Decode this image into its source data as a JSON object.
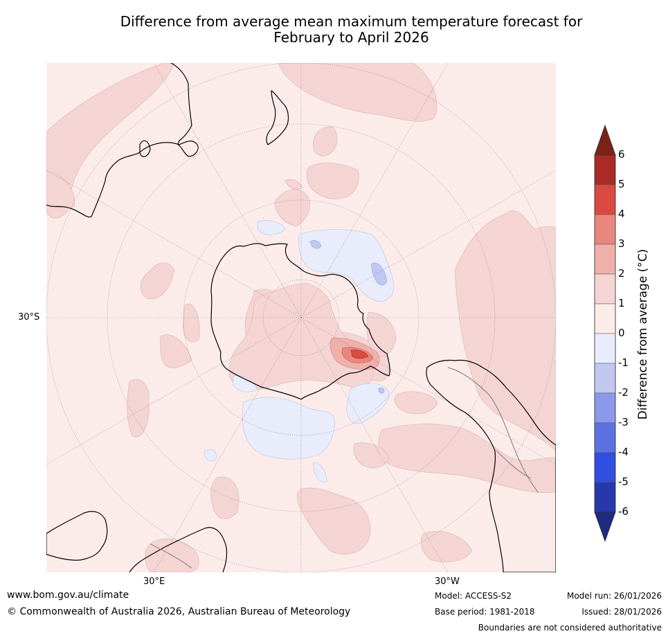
{
  "title_line1": "Difference from average mean maximum temperature forecast for",
  "title_line2": "February to April 2026",
  "map": {
    "projection": "south polar stereographic",
    "lat_label": "30°S",
    "lon_labels": [
      "30°E",
      "30°W"
    ],
    "regions": {
      "antarctica": "Antarctica",
      "australia": "Australia",
      "new_zealand": "New Zealand",
      "south_america": "South America",
      "africa": "Africa"
    }
  },
  "colorbar": {
    "label": "Difference from average (°C)",
    "ticks": [
      "6",
      "5",
      "4",
      "3",
      "2",
      "1",
      "0",
      "-1",
      "-2",
      "-3",
      "-4",
      "-5",
      "-6"
    ],
    "bins": [
      {
        "range": "5 to 6",
        "color": "#a82b26"
      },
      {
        "range": "4 to 5",
        "color": "#db4a40"
      },
      {
        "range": "3 to 4",
        "color": "#e8877e"
      },
      {
        "range": "2 to 3",
        "color": "#efb0a9"
      },
      {
        "range": "1 to 2",
        "color": "#f4d5d3"
      },
      {
        "range": "0 to 1",
        "color": "#fbecea"
      },
      {
        "range": "-1 to 0",
        "color": "#e9ecfb"
      },
      {
        "range": "-2 to -1",
        "color": "#c0c7f1"
      },
      {
        "range": "-3 to -2",
        "color": "#8b99ea"
      },
      {
        "range": "-4 to -3",
        "color": "#5d72e2"
      },
      {
        "range": "-5 to -4",
        "color": "#304ee0"
      },
      {
        "range": "-6 to -5",
        "color": "#2738ad"
      }
    ],
    "over_color": "#7b2218",
    "under_color": "#1f2a80"
  },
  "footer": {
    "website": "www.bom.gov.au/climate",
    "copyright": "© Commonwealth of Australia 2026, Australian Bureau of Meteorology",
    "model": "Model: ACCESS-S2",
    "base_period": "Base period: 1981-2018",
    "model_run": "Model run: 26/01/2026",
    "issued": "Issued: 28/01/2026",
    "disclaimer": "Boundaries are not considered authoritative"
  }
}
